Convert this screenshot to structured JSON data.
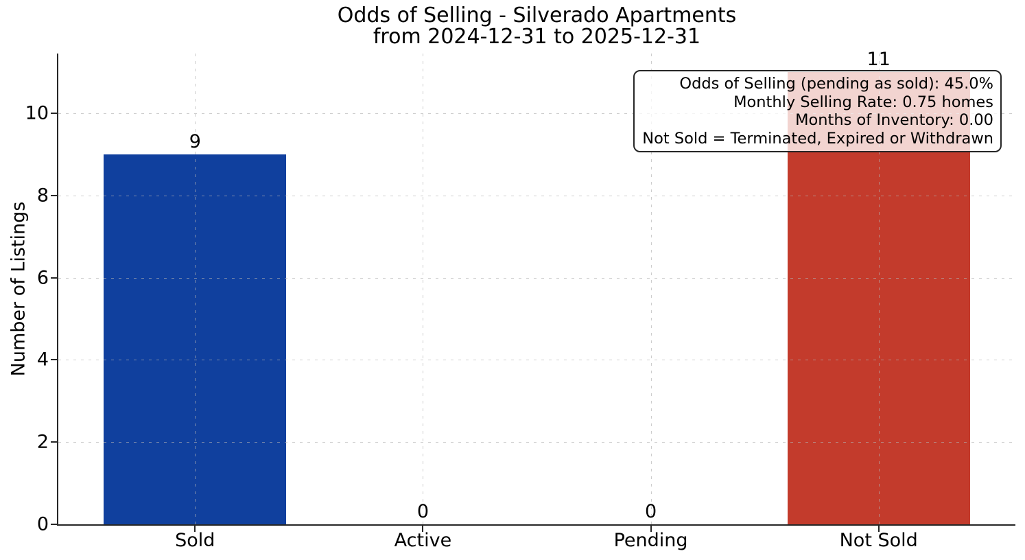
{
  "figure": {
    "title_line1": "Odds of Selling - Silverado Apartments",
    "title_line2": "from 2024-12-31 to 2025-12-31"
  },
  "chart_data": {
    "type": "bar",
    "title": "Odds of Selling - Silverado Apartments\nfrom 2024-12-31 to 2025-12-31",
    "categories": [
      "Sold",
      "Active",
      "Pending",
      "Not Sold"
    ],
    "values": [
      9,
      0,
      0,
      11
    ],
    "bar_value_labels": [
      "9",
      "0",
      "0",
      "11"
    ],
    "bar_colors": [
      "#10409e",
      null,
      null,
      "#c33b2c"
    ],
    "xlabel": "",
    "ylabel": "Number of Listings",
    "ylim": [
      0,
      11.45
    ],
    "yticks": [
      0,
      2,
      4,
      6,
      8,
      10
    ],
    "xlim": [
      -0.6,
      3.6
    ],
    "bar_width_units": 0.8,
    "grid": "both axes, dashed light gray, drawn above bars",
    "legend": "none",
    "annotation": {
      "position": "top-right",
      "text_align": "right",
      "lines": [
        "Odds of Selling (pending as sold): 45.0%",
        "Monthly Selling Rate: 0.75 homes",
        "Months of Inventory: 0.00",
        "Not Sold = Terminated, Expired or Withdrawn"
      ]
    },
    "text_color": "#000000",
    "spine_color": "#262626",
    "background_color": "#ffffff"
  }
}
